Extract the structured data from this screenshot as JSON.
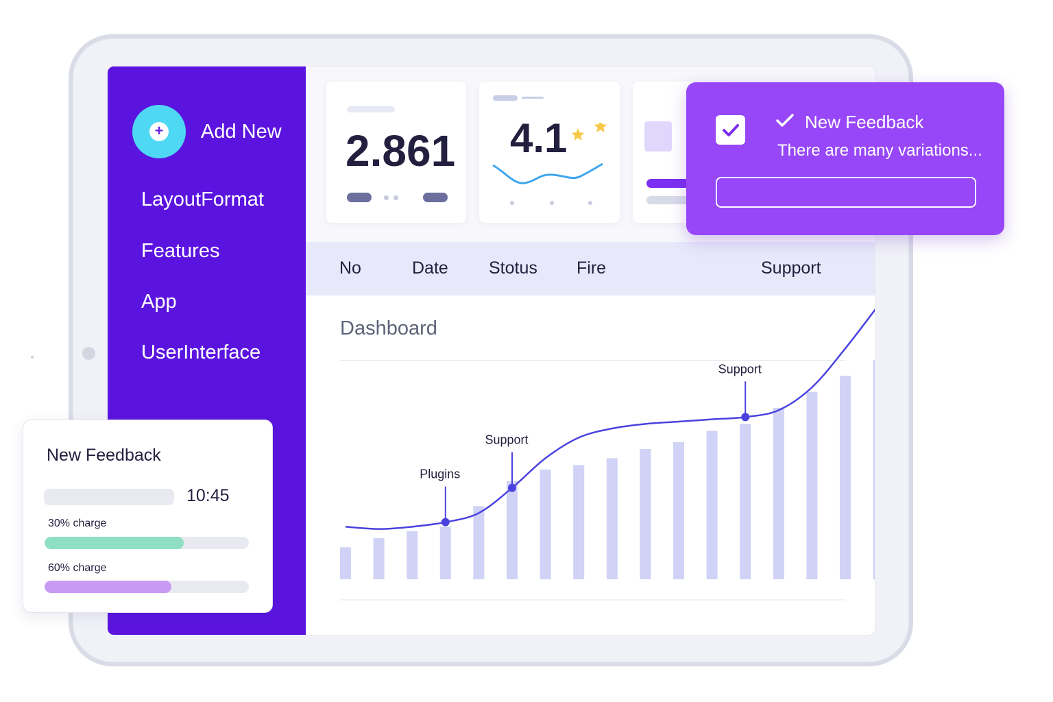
{
  "sidebar": {
    "add_new_label": "Add New",
    "items": [
      {
        "label": "LayoutFormat"
      },
      {
        "label": "Features"
      },
      {
        "label": "App"
      },
      {
        "label": "UserInterface"
      }
    ]
  },
  "stats": {
    "card1_value": "2.861",
    "card2_value": "4.1"
  },
  "table_header": {
    "columns": [
      "No",
      "Date",
      "Stotus",
      "Fire",
      "Support"
    ]
  },
  "dashboard": {
    "title": "Dashboard"
  },
  "chart_data": {
    "type": "bar",
    "bars": [
      14,
      18,
      21,
      23,
      32,
      43,
      48,
      50,
      53,
      57,
      60,
      65,
      68,
      75,
      82,
      89,
      96
    ],
    "line": [
      23,
      22,
      23,
      25,
      29,
      40,
      53,
      62,
      66,
      68,
      69,
      70,
      71,
      74,
      84,
      101,
      120
    ],
    "annotations": [
      {
        "label": "Plugins",
        "index": 3
      },
      {
        "label": "Support",
        "index": 5
      },
      {
        "label": "Support",
        "index": 12
      }
    ],
    "ylim": [
      0,
      120
    ]
  },
  "toast": {
    "title": "New Feedback",
    "text": "There are many variations...",
    "input_value": ""
  },
  "feedback_card": {
    "title": "New Feedback",
    "time": "10:45",
    "bars": [
      {
        "label": "30% charge",
        "progress": 0.68,
        "color": "#8fdfc4"
      },
      {
        "label": "60% charge",
        "progress": 0.62,
        "color": "#c89af3"
      }
    ]
  },
  "colors": {
    "sidebar": "#5b14df",
    "accent_cyan": "#4fd8f3",
    "toast": "#9747f7",
    "line": "#4a42e0",
    "bars": "#d0d3f5",
    "star": "#f7c94a"
  }
}
